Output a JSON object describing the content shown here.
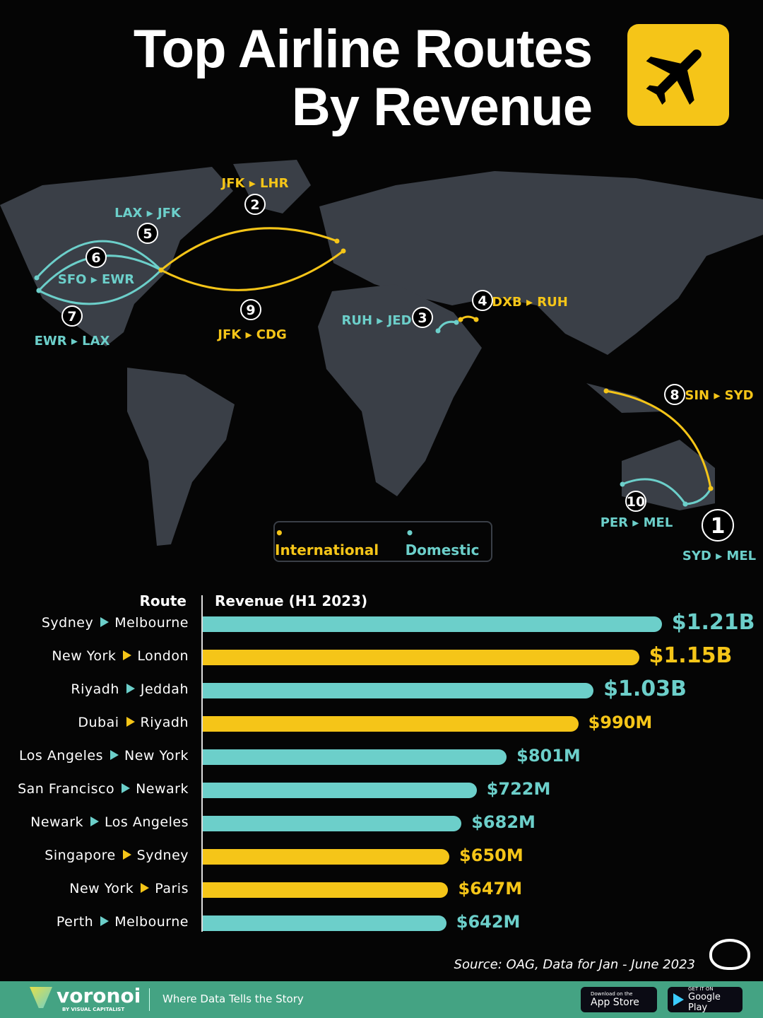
{
  "title": {
    "line1": "Top Airline Routes",
    "line2": "By Revenue"
  },
  "colors": {
    "international": "#f5c518",
    "domestic": "#6ccfca",
    "land": "#3a3f47",
    "background": "#050505",
    "footer": "#44a383"
  },
  "map": {
    "routes": [
      {
        "rank": "1",
        "code": "SYD ▸ MEL",
        "type": "domestic"
      },
      {
        "rank": "2",
        "code": "JFK ▸ LHR",
        "type": "international"
      },
      {
        "rank": "3",
        "code": "RUH ▸ JED",
        "type": "domestic"
      },
      {
        "rank": "4",
        "code": "DXB ▸ RUH",
        "type": "international"
      },
      {
        "rank": "5",
        "code": "LAX ▸ JFK",
        "type": "domestic"
      },
      {
        "rank": "6",
        "code": "SFO ▸ EWR",
        "type": "domestic"
      },
      {
        "rank": "7",
        "code": "EWR ▸ LAX",
        "type": "domestic"
      },
      {
        "rank": "8",
        "code": "SIN ▸ SYD",
        "type": "international"
      },
      {
        "rank": "9",
        "code": "JFK ▸ CDG",
        "type": "international"
      },
      {
        "rank": "10",
        "code": "PER ▸ MEL",
        "type": "domestic"
      }
    ],
    "legend": {
      "international": "International",
      "domestic": "Domestic"
    }
  },
  "chart_data": {
    "type": "bar",
    "orientation": "horizontal",
    "xlabel": "Revenue (H1 2023)",
    "ylabel": "Route",
    "unit": "USD billions",
    "categories": [
      {
        "from": "Sydney",
        "to": "Melbourne"
      },
      {
        "from": "New York",
        "to": "London"
      },
      {
        "from": "Riyadh",
        "to": "Jeddah"
      },
      {
        "from": "Dubai",
        "to": "Riyadh"
      },
      {
        "from": "Los Angeles",
        "to": "New York"
      },
      {
        "from": "San Francisco",
        "to": "Newark"
      },
      {
        "from": "Newark",
        "to": "Los Angeles"
      },
      {
        "from": "Singapore",
        "to": "Sydney"
      },
      {
        "from": "New York",
        "to": "Paris"
      },
      {
        "from": "Perth",
        "to": "Melbourne"
      }
    ],
    "values": [
      1.21,
      1.15,
      1.03,
      0.99,
      0.801,
      0.722,
      0.682,
      0.65,
      0.647,
      0.642
    ],
    "labels": [
      "$1.21B",
      "$1.15B",
      "$1.03B",
      "$990M",
      "$801M",
      "$722M",
      "$682M",
      "$650M",
      "$647M",
      "$642M"
    ],
    "types": [
      "domestic",
      "international",
      "domestic",
      "international",
      "domestic",
      "domestic",
      "domestic",
      "international",
      "international",
      "domestic"
    ]
  },
  "source": "Source: OAG, Data for Jan - June 2023",
  "footer": {
    "brand": "voronoi",
    "brand_sub": "BY VISUAL CAPITALIST",
    "tagline": "Where Data Tells the Story",
    "app_store_small": "Download on the",
    "app_store": "App Store",
    "google_small": "GET IT ON",
    "google": "Google Play"
  }
}
